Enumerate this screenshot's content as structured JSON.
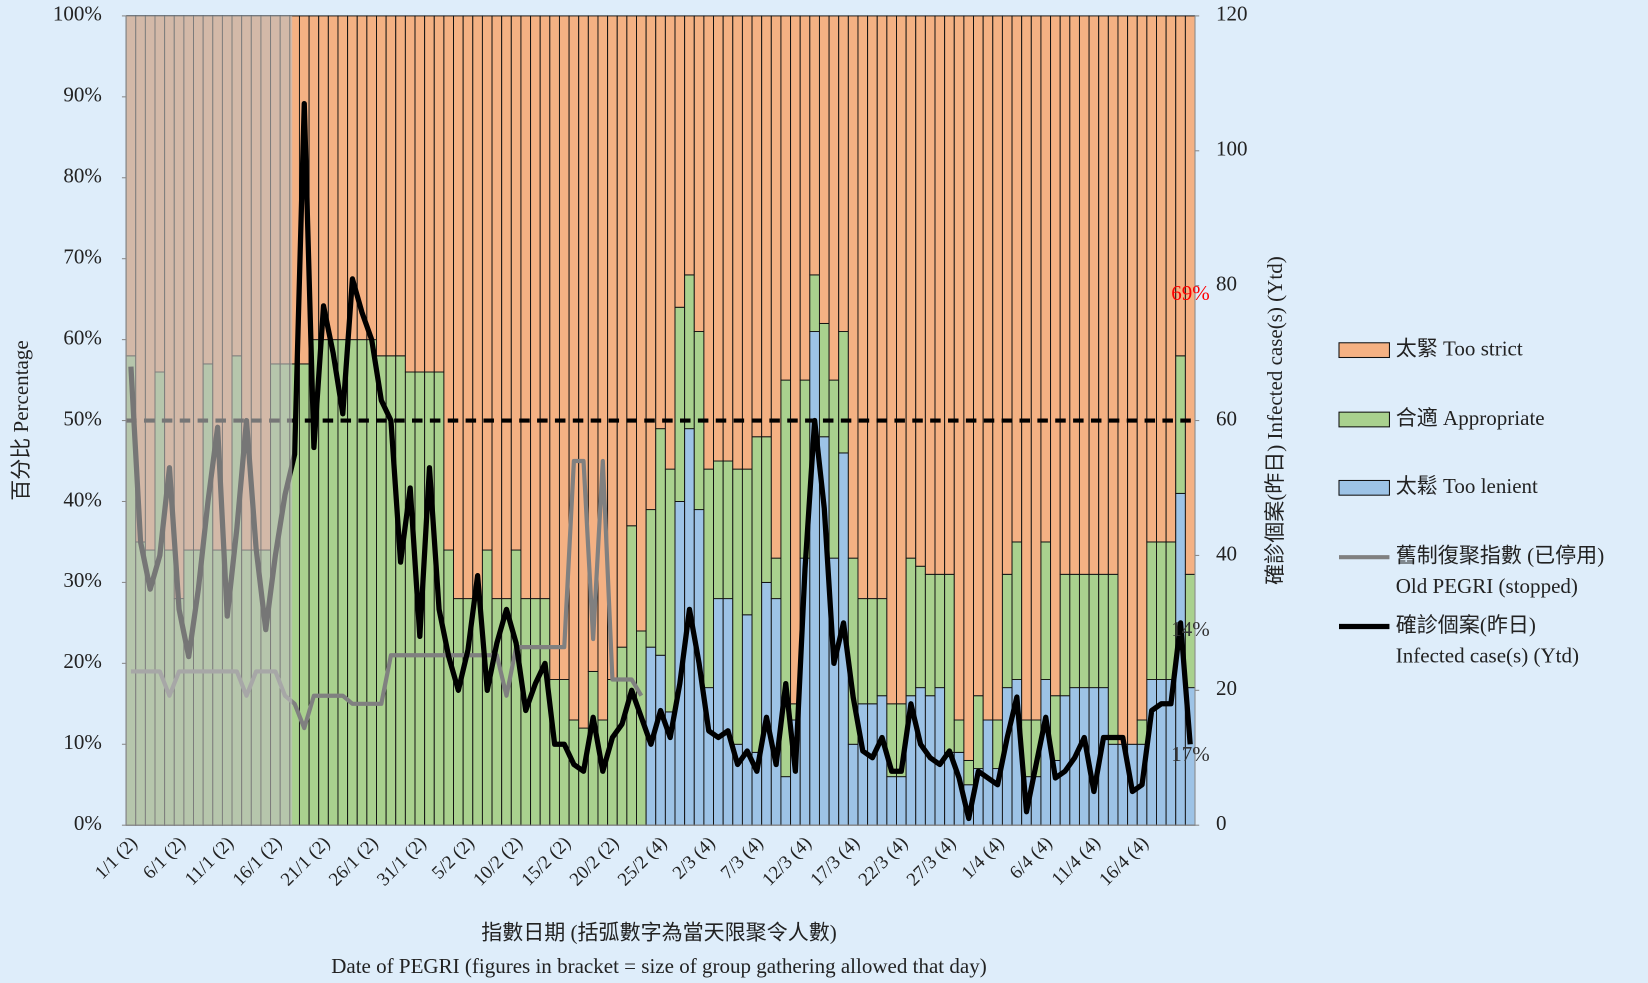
{
  "chart_data": {
    "type": "bar",
    "stacked": true,
    "ylabel": "百分比 Percentage",
    "y2label": "確診個案(昨日) Infected case(s) (Ytd)",
    "xlabel": [
      "指數日期 (括弧數字為當天限聚令人數)",
      "Date of PEGRI (figures in bracket = size of group gathering allowed that day)"
    ],
    "categories": [
      "1/1 (2)",
      null,
      null,
      null,
      null,
      "6/1 (2)",
      null,
      null,
      null,
      null,
      "11/1 (2)",
      null,
      null,
      null,
      null,
      "16/1 (2)",
      null,
      null,
      null,
      null,
      "21/1 (2)",
      null,
      null,
      null,
      null,
      "26/1 (2)",
      null,
      null,
      null,
      null,
      "31/1 (2)",
      null,
      null,
      null,
      null,
      "5/2 (2)",
      null,
      null,
      null,
      null,
      "10/2 (2)",
      null,
      null,
      null,
      null,
      "15/2 (2)",
      null,
      null,
      null,
      null,
      "20/2 (2)",
      null,
      null,
      null,
      null,
      "25/2 (4)",
      null,
      null,
      null,
      null,
      "2/3 (4)",
      null,
      null,
      null,
      null,
      "7/3 (4)",
      null,
      null,
      null,
      null,
      "12/3 (4)",
      null,
      null,
      null,
      null,
      "17/3 (4)",
      null,
      null,
      null,
      null,
      "22/3 (4)",
      null,
      null,
      null,
      null,
      "27/3 (4)",
      null,
      null,
      null,
      null,
      "1/4 (4)",
      null,
      null,
      null,
      null,
      "6/4 (4)",
      null,
      null,
      null,
      null,
      "11/4 (4)",
      null,
      null,
      null,
      null,
      "16/4 (4)",
      null,
      null,
      null,
      null,
      null
    ],
    "series": [
      {
        "name": "太緊 Too strict",
        "type": "bar",
        "color": "#f4b183",
        "values": [
          42,
          65,
          66,
          44,
          66,
          72,
          66,
          66,
          43,
          66,
          66,
          42,
          66,
          66,
          66,
          43,
          43,
          43,
          43,
          40,
          40,
          40,
          40,
          40,
          40,
          40,
          42,
          42,
          42,
          44,
          44,
          44,
          44,
          66,
          72,
          72,
          72,
          66,
          72,
          72,
          66,
          72,
          72,
          72,
          82,
          82,
          87,
          88,
          81,
          87,
          82,
          78,
          63,
          76,
          61,
          51,
          56,
          36,
          32,
          39,
          56,
          55,
          55,
          56,
          56,
          52,
          52,
          67,
          45,
          85,
          45,
          32,
          38,
          45,
          39,
          67,
          72,
          72,
          72,
          85,
          85,
          67,
          68,
          69,
          69,
          69,
          87,
          92,
          84,
          87,
          87,
          69,
          65,
          87,
          87,
          65,
          84,
          69,
          69,
          69,
          69,
          69,
          69,
          90,
          90,
          87,
          65,
          65,
          65,
          42,
          69
        ]
      },
      {
        "name": "合適 Appropriate",
        "type": "bar",
        "color": "#a9d18e",
        "values": [
          58,
          35,
          34,
          56,
          34,
          28,
          34,
          34,
          57,
          34,
          34,
          58,
          34,
          34,
          34,
          57,
          57,
          57,
          57,
          60,
          60,
          60,
          60,
          60,
          60,
          60,
          58,
          58,
          58,
          56,
          56,
          56,
          56,
          34,
          28,
          28,
          28,
          34,
          28,
          28,
          34,
          28,
          28,
          28,
          18,
          18,
          13,
          12,
          19,
          13,
          18,
          22,
          37,
          24,
          17,
          28,
          30,
          24,
          19,
          22,
          27,
          17,
          17,
          34,
          18,
          39,
          18,
          5,
          49,
          2,
          22,
          7,
          14,
          22,
          15,
          23,
          13,
          13,
          12,
          9,
          9,
          17,
          15,
          15,
          14,
          22,
          4,
          3,
          9,
          0,
          6,
          14,
          17,
          7,
          7,
          17,
          8,
          15,
          14,
          14,
          14,
          14,
          21,
          0,
          0,
          3,
          17,
          17,
          17,
          17,
          14
        ]
      },
      {
        "name": "太鬆 Too lenient",
        "type": "bar",
        "color": "#9dc3e6",
        "values": [
          0,
          0,
          0,
          0,
          0,
          0,
          0,
          0,
          0,
          0,
          0,
          0,
          0,
          0,
          0,
          0,
          0,
          0,
          0,
          0,
          0,
          0,
          0,
          0,
          0,
          0,
          0,
          0,
          0,
          0,
          0,
          0,
          0,
          0,
          0,
          0,
          0,
          0,
          0,
          0,
          0,
          0,
          0,
          0,
          0,
          0,
          0,
          0,
          0,
          0,
          0,
          0,
          0,
          0,
          22,
          21,
          14,
          40,
          49,
          39,
          17,
          28,
          28,
          10,
          26,
          9,
          30,
          28,
          6,
          13,
          33,
          61,
          48,
          33,
          46,
          10,
          15,
          15,
          16,
          6,
          6,
          16,
          17,
          16,
          17,
          9,
          9,
          5,
          7,
          13,
          7,
          17,
          18,
          6,
          6,
          18,
          8,
          16,
          17,
          17,
          17,
          17,
          10,
          10,
          10,
          10,
          18,
          18,
          18,
          41,
          17
        ]
      },
      {
        "name": "舊制復聚指數 (已停用)\nOld PEGRI (stopped)",
        "type": "line",
        "color": "#808080",
        "values": [
          19,
          19,
          19,
          19,
          16,
          19,
          19,
          19,
          19,
          19,
          19,
          19,
          16,
          19,
          19,
          19,
          16,
          15,
          12,
          16,
          16,
          16,
          16,
          15,
          15,
          15,
          15,
          21,
          21,
          21,
          21,
          21,
          21,
          21,
          21,
          21,
          21,
          21,
          21,
          16,
          22,
          22,
          22,
          22,
          22,
          22,
          45,
          45,
          23,
          45,
          18,
          18,
          18,
          16,
          null,
          null,
          null,
          null,
          null,
          null,
          null,
          null,
          null,
          null,
          null,
          null,
          null,
          null,
          null,
          null,
          null,
          null,
          null,
          null,
          null,
          null,
          null,
          null,
          null,
          null,
          null,
          null,
          null,
          null,
          null,
          null,
          null,
          null,
          null,
          null,
          null,
          null,
          null,
          null,
          null,
          null,
          null,
          null,
          null,
          null,
          null,
          null,
          null,
          null,
          null,
          null,
          null,
          null,
          null,
          null,
          null
        ]
      },
      {
        "name": "確診個案(昨日)\nInfected case(s) (Ytd)",
        "type": "line",
        "axis": "y2",
        "color": "#000000",
        "values": [
          68,
          42,
          35,
          40,
          53,
          32,
          25,
          35,
          48,
          59,
          31,
          44,
          60,
          41,
          29,
          40,
          49,
          55,
          107,
          56,
          77,
          70,
          61,
          81,
          76,
          72,
          63,
          60,
          39,
          50,
          28,
          53,
          32,
          25,
          20,
          26,
          37,
          20,
          27,
          32,
          27,
          17,
          21,
          24,
          12,
          12,
          9,
          8,
          16,
          8,
          13,
          15,
          20,
          16,
          12,
          17,
          13,
          21,
          32,
          24,
          14,
          13,
          14,
          9,
          11,
          8,
          16,
          9,
          21,
          8,
          38,
          60,
          47,
          24,
          30,
          19,
          11,
          10,
          13,
          8,
          8,
          18,
          12,
          10,
          9,
          11,
          7,
          1,
          8,
          7,
          6,
          13,
          19,
          2,
          9,
          16,
          7,
          8,
          10,
          13,
          5,
          13,
          13,
          13,
          5,
          6,
          17,
          18,
          18,
          30,
          12
        ]
      }
    ],
    "annotations": [
      {
        "series": 0,
        "index": 110,
        "label": "69%",
        "color": "#ff0000"
      },
      {
        "series": 1,
        "index": 110,
        "label": "14%",
        "color": "#333333"
      },
      {
        "series": 2,
        "index": 110,
        "label": "17%",
        "color": "#333333"
      }
    ],
    "hline": 50,
    "ylim": [
      0,
      100
    ],
    "yticks": [
      {
        "value": 0,
        "label": "0%"
      },
      {
        "value": 10,
        "label": "10%"
      },
      {
        "value": 20,
        "label": "20%"
      },
      {
        "value": 30,
        "label": "30%"
      },
      {
        "value": 40,
        "label": "40%"
      },
      {
        "value": 50,
        "label": "50%"
      },
      {
        "value": 60,
        "label": "60%"
      },
      {
        "value": 70,
        "label": "70%"
      },
      {
        "value": 80,
        "label": "80%"
      },
      {
        "value": 90,
        "label": "90%"
      },
      {
        "value": 100,
        "label": "100%"
      }
    ],
    "y2lim": [
      0,
      120
    ],
    "y2ticks": [
      0,
      20,
      40,
      60,
      80,
      100,
      120
    ],
    "legend": "right"
  }
}
